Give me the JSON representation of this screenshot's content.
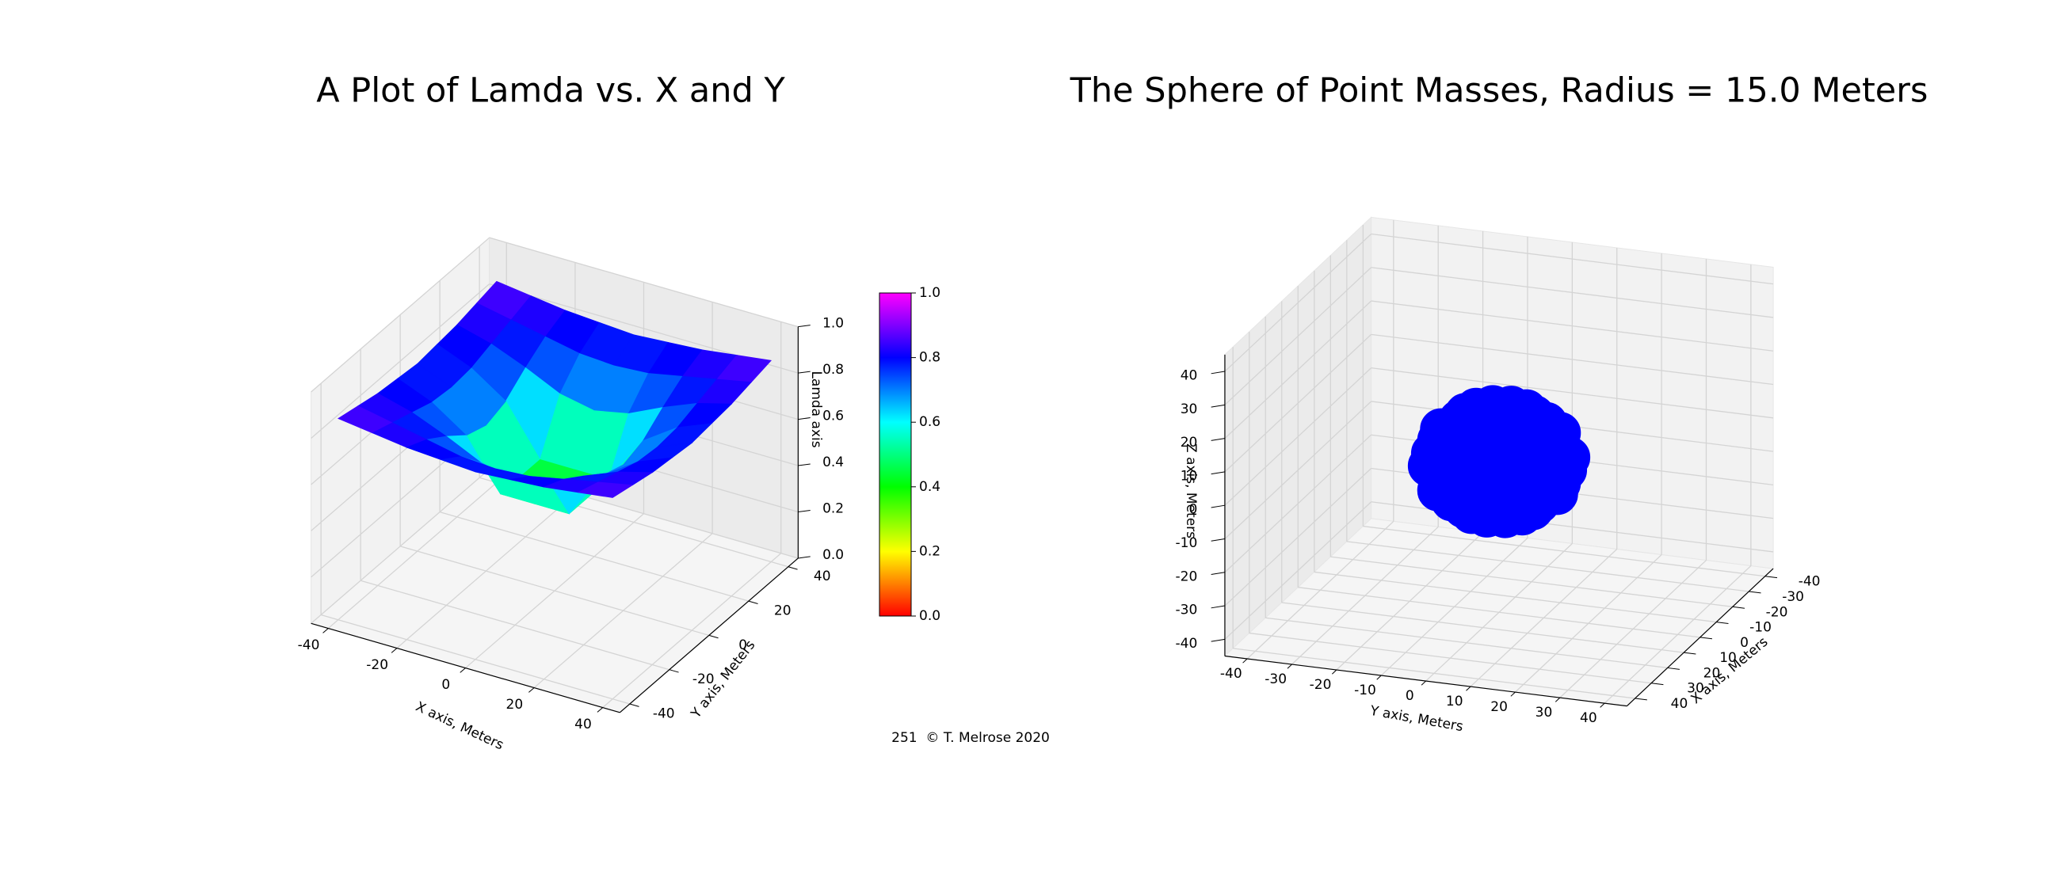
{
  "chart_data": [
    {
      "type": "surface3d",
      "title": "A Plot of Lamda vs. X and Y",
      "xlabel": "X axis, Meters",
      "ylabel": "Y axis, Meters",
      "zlabel": "Lamda axis",
      "x": [
        -40,
        -30,
        -20,
        -10,
        0,
        10,
        20,
        30,
        40
      ],
      "y": [
        -40,
        -30,
        -20,
        -10,
        0,
        10,
        20,
        30,
        40
      ],
      "z": [
        [
          0.87,
          0.85,
          0.83,
          0.82,
          0.81,
          0.82,
          0.83,
          0.85,
          0.87
        ],
        [
          0.85,
          0.82,
          0.79,
          0.76,
          0.75,
          0.76,
          0.79,
          0.82,
          0.85
        ],
        [
          0.83,
          0.79,
          0.73,
          0.66,
          0.63,
          0.66,
          0.73,
          0.79,
          0.83
        ],
        [
          0.82,
          0.76,
          0.66,
          0.45,
          0.45,
          0.45,
          0.66,
          0.76,
          0.82
        ],
        [
          0.81,
          0.75,
          0.63,
          0.45,
          0.45,
          0.45,
          0.63,
          0.75,
          0.81
        ],
        [
          0.82,
          0.76,
          0.66,
          0.45,
          0.45,
          0.45,
          0.66,
          0.76,
          0.82
        ],
        [
          0.83,
          0.79,
          0.73,
          0.66,
          0.63,
          0.66,
          0.73,
          0.79,
          0.83
        ],
        [
          0.85,
          0.82,
          0.79,
          0.76,
          0.75,
          0.76,
          0.79,
          0.82,
          0.85
        ],
        [
          0.87,
          0.85,
          0.83,
          0.82,
          0.81,
          0.82,
          0.83,
          0.85,
          0.87
        ]
      ],
      "xlim": [
        -45,
        45
      ],
      "ylim": [
        -45,
        45
      ],
      "zlim": [
        0,
        1
      ],
      "xticks": [
        -40,
        -20,
        0,
        20,
        40
      ],
      "yticks": [
        -40,
        -20,
        0,
        20,
        40
      ],
      "zticks": [
        {
          "value": 0,
          "label": "0.0"
        },
        {
          "value": 0.2,
          "label": "0.2"
        },
        {
          "value": 0.4,
          "label": "0.4"
        },
        {
          "value": 0.6,
          "label": "0.6"
        },
        {
          "value": 0.8,
          "label": "0.8"
        },
        {
          "value": 1,
          "label": "1.0"
        }
      ],
      "colormap": [
        "#ff0000",
        "#ffff00",
        "#00ff00",
        "#00ffff",
        "#0000ff",
        "#ff00ff"
      ],
      "cbar_lim": [
        0,
        1
      ],
      "cbar_ticks": [
        {
          "value": 0,
          "label": "0.0"
        },
        {
          "value": 0.2,
          "label": "0.2"
        },
        {
          "value": 0.4,
          "label": "0.4"
        },
        {
          "value": 0.6,
          "label": "0.6"
        },
        {
          "value": 0.8,
          "label": "0.8"
        },
        {
          "value": 1,
          "label": "1.0"
        }
      ]
    },
    {
      "type": "scatter3d",
      "title": "The Sphere of Point Masses, Radius = 15.0 Meters",
      "xlabel": "X axis, Meters",
      "ylabel": "Y axis, Meters",
      "zlabel": "Z axis, Meters",
      "color": "#0000ff",
      "x": [
        0,
        7.5,
        6.5,
        3.75,
        0,
        -3.75,
        -6.5,
        -7.5,
        -6.5,
        -3.75,
        0,
        3.75,
        6.5,
        12.99,
        11.25,
        6.5,
        0,
        -6.5,
        -11.25,
        -12.99,
        -11.25,
        -6.5,
        0,
        6.5,
        11.25,
        15,
        12.99,
        7.5,
        0,
        -7.5,
        -12.99,
        -15,
        -12.99,
        -7.5,
        0,
        7.5,
        12.99,
        12.99,
        11.25,
        6.5,
        0,
        -6.5,
        -11.25,
        -12.99,
        -11.25,
        -6.5,
        0,
        6.5,
        11.25,
        7.5,
        6.5,
        3.75,
        0,
        -3.75,
        -6.5,
        -7.5,
        -6.5,
        -3.75,
        0,
        3.75,
        6.5,
        0
      ],
      "y": [
        0,
        0,
        3.75,
        6.5,
        7.5,
        6.5,
        3.75,
        0,
        -3.75,
        -6.5,
        -7.5,
        -6.5,
        -3.75,
        0,
        6.5,
        11.25,
        12.99,
        11.25,
        6.5,
        0,
        -6.5,
        -11.25,
        -12.99,
        -11.25,
        -6.5,
        0,
        7.5,
        12.99,
        15,
        12.99,
        7.5,
        0,
        -7.5,
        -12.99,
        -15,
        -12.99,
        -7.5,
        0,
        6.5,
        11.25,
        12.99,
        11.25,
        6.5,
        0,
        -6.5,
        -11.25,
        -12.99,
        -11.25,
        -6.5,
        0,
        3.75,
        6.5,
        7.5,
        6.5,
        3.75,
        0,
        -3.75,
        -6.5,
        -7.5,
        -6.5,
        -3.75,
        0
      ],
      "z": [
        -15,
        -12.99,
        -12.99,
        -12.99,
        -12.99,
        -12.99,
        -12.99,
        -12.99,
        -12.99,
        -12.99,
        -12.99,
        -12.99,
        -12.99,
        -7.5,
        -7.5,
        -7.5,
        -7.5,
        -7.5,
        -7.5,
        -7.5,
        -7.5,
        -7.5,
        -7.5,
        -7.5,
        -7.5,
        0,
        0,
        0,
        0,
        0,
        0,
        0,
        0,
        0,
        0,
        0,
        0,
        7.5,
        7.5,
        7.5,
        7.5,
        7.5,
        7.5,
        7.5,
        7.5,
        7.5,
        7.5,
        7.5,
        7.5,
        12.99,
        12.99,
        12.99,
        12.99,
        12.99,
        12.99,
        12.99,
        12.99,
        12.99,
        12.99,
        12.99,
        12.99,
        15
      ],
      "xlim": [
        -45,
        45
      ],
      "ylim": [
        -45,
        45
      ],
      "zlim": [
        -45,
        45
      ],
      "xticks": [
        -40,
        -30,
        -20,
        -10,
        0,
        10,
        20,
        30,
        40
      ],
      "yticks": [
        -40,
        -30,
        -20,
        -10,
        0,
        10,
        20,
        30,
        40
      ],
      "zticks": [
        -40,
        -30,
        -20,
        -10,
        0,
        10,
        20,
        30,
        40
      ]
    }
  ],
  "footer": "251  © T. Melrose 2020"
}
